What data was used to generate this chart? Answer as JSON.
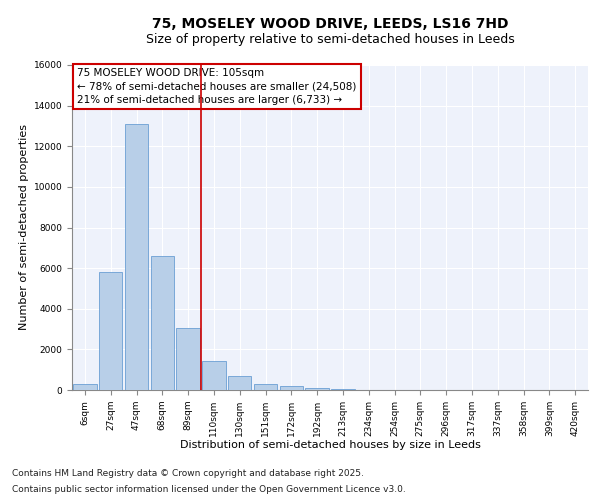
{
  "title_line1": "75, MOSELEY WOOD DRIVE, LEEDS, LS16 7HD",
  "title_line2": "Size of property relative to semi-detached houses in Leeds",
  "xlabel": "Distribution of semi-detached houses by size in Leeds",
  "ylabel": "Number of semi-detached properties",
  "bar_labels": [
    "6sqm",
    "27sqm",
    "47sqm",
    "68sqm",
    "89sqm",
    "110sqm",
    "130sqm",
    "151sqm",
    "172sqm",
    "192sqm",
    "213sqm",
    "234sqm",
    "254sqm",
    "275sqm",
    "296sqm",
    "317sqm",
    "337sqm",
    "358sqm",
    "399sqm",
    "420sqm"
  ],
  "bar_values": [
    300,
    5800,
    13100,
    6600,
    3050,
    1450,
    680,
    310,
    190,
    120,
    50,
    10,
    0,
    0,
    0,
    0,
    0,
    0,
    0,
    0
  ],
  "bar_color": "#b8cfe8",
  "bar_edgecolor": "#6b9fd4",
  "vline_color": "#cc0000",
  "ylim": [
    0,
    16000
  ],
  "yticks": [
    0,
    2000,
    4000,
    6000,
    8000,
    10000,
    12000,
    14000,
    16000
  ],
  "annotation_title": "75 MOSELEY WOOD DRIVE: 105sqm",
  "annotation_line1": "← 78% of semi-detached houses are smaller (24,508)",
  "annotation_line2": "21% of semi-detached houses are larger (6,733) →",
  "footnote1": "Contains HM Land Registry data © Crown copyright and database right 2025.",
  "footnote2": "Contains public sector information licensed under the Open Government Licence v3.0.",
  "background_color": "#eef2fb",
  "grid_color": "#ffffff",
  "title_fontsize": 10,
  "subtitle_fontsize": 9,
  "axis_label_fontsize": 8,
  "tick_fontsize": 6.5,
  "annotation_fontsize": 7.5,
  "footnote_fontsize": 6.5,
  "vline_x": 4.5
}
